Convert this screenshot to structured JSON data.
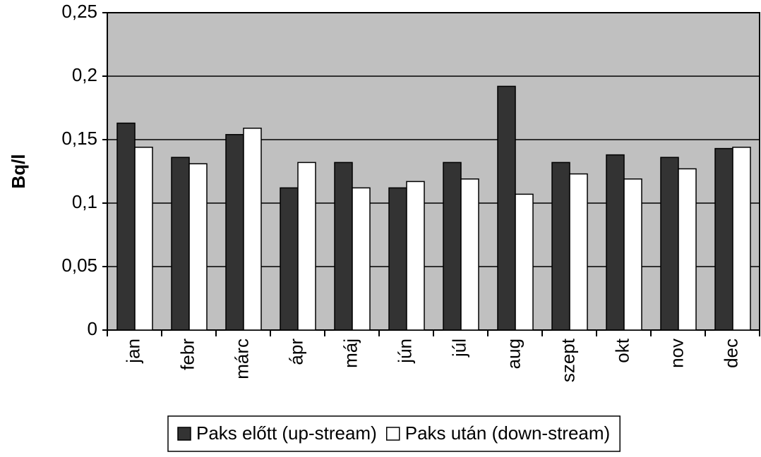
{
  "chart_data": {
    "type": "bar",
    "y_label": "Bq/l",
    "categories": [
      "jan",
      "febr",
      "márc",
      "ápr",
      "máj",
      "jún",
      "júl",
      "aug",
      "szept",
      "okt",
      "nov",
      "dec"
    ],
    "series": [
      {
        "name": "Paks előtt (up-stream)",
        "color": "#333333",
        "values": [
          0.163,
          0.136,
          0.154,
          0.112,
          0.132,
          0.112,
          0.132,
          0.192,
          0.132,
          0.138,
          0.136,
          0.143
        ]
      },
      {
        "name": "Paks után (down-stream)",
        "color": "#ffffff",
        "values": [
          0.144,
          0.131,
          0.159,
          0.132,
          0.112,
          0.117,
          0.119,
          0.107,
          0.123,
          0.119,
          0.127,
          0.144
        ]
      }
    ],
    "ylim": [
      0,
      0.25
    ],
    "yticks": [
      0,
      {
        "value": 0.05,
        "label": "0,05"
      },
      {
        "value": 0.1,
        "label": "0,1"
      },
      {
        "value": 0.15,
        "label": "0,15"
      },
      {
        "value": 0.2,
        "label": "0,2"
      },
      {
        "value": 0.25,
        "label": "0,25"
      }
    ],
    "grid": true,
    "plot_background": "#c0c0c0",
    "legend": "bottom"
  }
}
